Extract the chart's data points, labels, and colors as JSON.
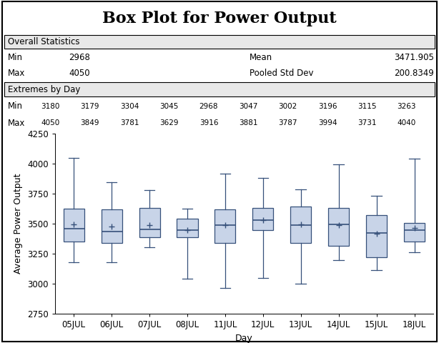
{
  "title": "Box Plot for Power Output",
  "xlabel": "Day",
  "ylabel": "Average Power Output",
  "days": [
    "05JUL",
    "06JUL",
    "07JUL",
    "08JUL",
    "11JUL",
    "12JUL",
    "13JUL",
    "14JUL",
    "15JUL",
    "18JUL"
  ],
  "ylim": [
    2750,
    4250
  ],
  "yticks": [
    2750,
    3000,
    3250,
    3500,
    3750,
    4000,
    4250
  ],
  "overall_stats": {
    "min": 2968,
    "max": 4050,
    "mean": "3471.905",
    "pooled_std_dev": "200.8349"
  },
  "extremes_by_day": {
    "min": [
      3180,
      3179,
      3304,
      3045,
      2968,
      3047,
      3002,
      3196,
      3115,
      3263
    ],
    "max": [
      4050,
      3849,
      3781,
      3629,
      3916,
      3881,
      3787,
      3994,
      3731,
      4040
    ]
  },
  "boxplot_stats": [
    {
      "whislo": 3180,
      "q1": 3355,
      "med": 3460,
      "q3": 3625,
      "whishi": 4050,
      "mean": 3497
    },
    {
      "whislo": 3179,
      "q1": 3340,
      "med": 3435,
      "q3": 3620,
      "whishi": 3849,
      "mean": 3477
    },
    {
      "whislo": 3304,
      "q1": 3390,
      "med": 3455,
      "q3": 3635,
      "whishi": 3781,
      "mean": 3487
    },
    {
      "whislo": 3045,
      "q1": 3390,
      "med": 3445,
      "q3": 3545,
      "whishi": 3629,
      "mean": 3448
    },
    {
      "whislo": 2968,
      "q1": 3340,
      "med": 3490,
      "q3": 3620,
      "whishi": 3916,
      "mean": 3492
    },
    {
      "whislo": 3047,
      "q1": 3445,
      "med": 3530,
      "q3": 3635,
      "whishi": 3881,
      "mean": 3528
    },
    {
      "whislo": 3002,
      "q1": 3340,
      "med": 3490,
      "q3": 3645,
      "whishi": 3787,
      "mean": 3498
    },
    {
      "whislo": 3196,
      "q1": 3315,
      "med": 3495,
      "q3": 3635,
      "whishi": 3994,
      "mean": 3492
    },
    {
      "whislo": 3115,
      "q1": 3220,
      "med": 3425,
      "q3": 3575,
      "whishi": 3731,
      "mean": 3418
    },
    {
      "whislo": 3263,
      "q1": 3350,
      "med": 3450,
      "q3": 3510,
      "whishi": 4040,
      "mean": 3468
    }
  ],
  "box_facecolor": "#c8d4e8",
  "box_edgecolor": "#36507a",
  "whisker_color": "#36507a",
  "median_color": "#36507a",
  "mean_marker_color": "#36507a",
  "background_color": "#ffffff",
  "title_fontsize": 16,
  "label_fontsize": 9,
  "tick_fontsize": 8.5,
  "table_fontsize": 8.5
}
